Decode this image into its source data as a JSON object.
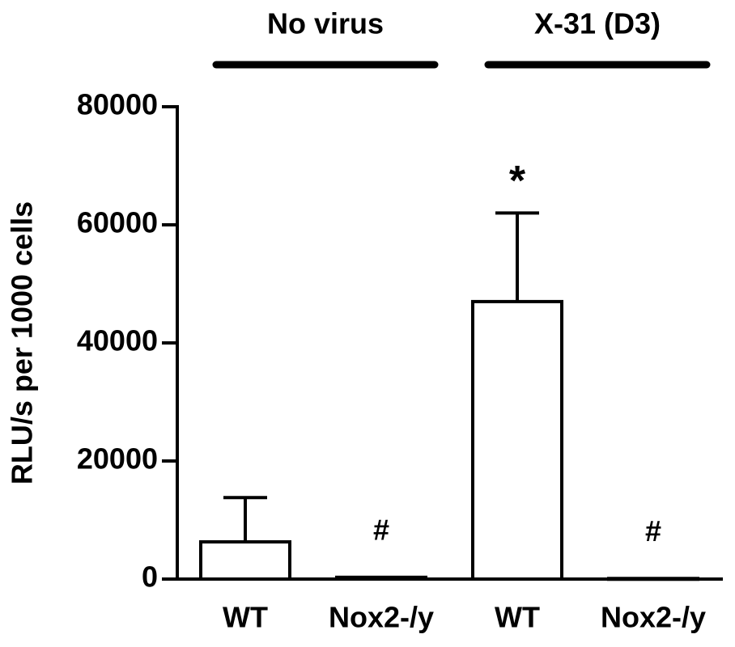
{
  "chart_data": {
    "type": "bar",
    "y_label": "RLU/s per 1000 cells",
    "categories": [
      "WT",
      "Nox2-/y",
      "WT",
      "Nox2-/y"
    ],
    "group_labels": [
      "No virus",
      "X-31 (D3)"
    ],
    "values": [
      6300,
      300,
      47000,
      100
    ],
    "errors": [
      7500,
      null,
      15000,
      null
    ],
    "markers": [
      null,
      "#",
      "*",
      "#"
    ],
    "color": "#ffffff",
    "ylim": [
      0,
      80000
    ],
    "yticks": [
      0,
      20000,
      40000,
      60000,
      80000
    ]
  }
}
